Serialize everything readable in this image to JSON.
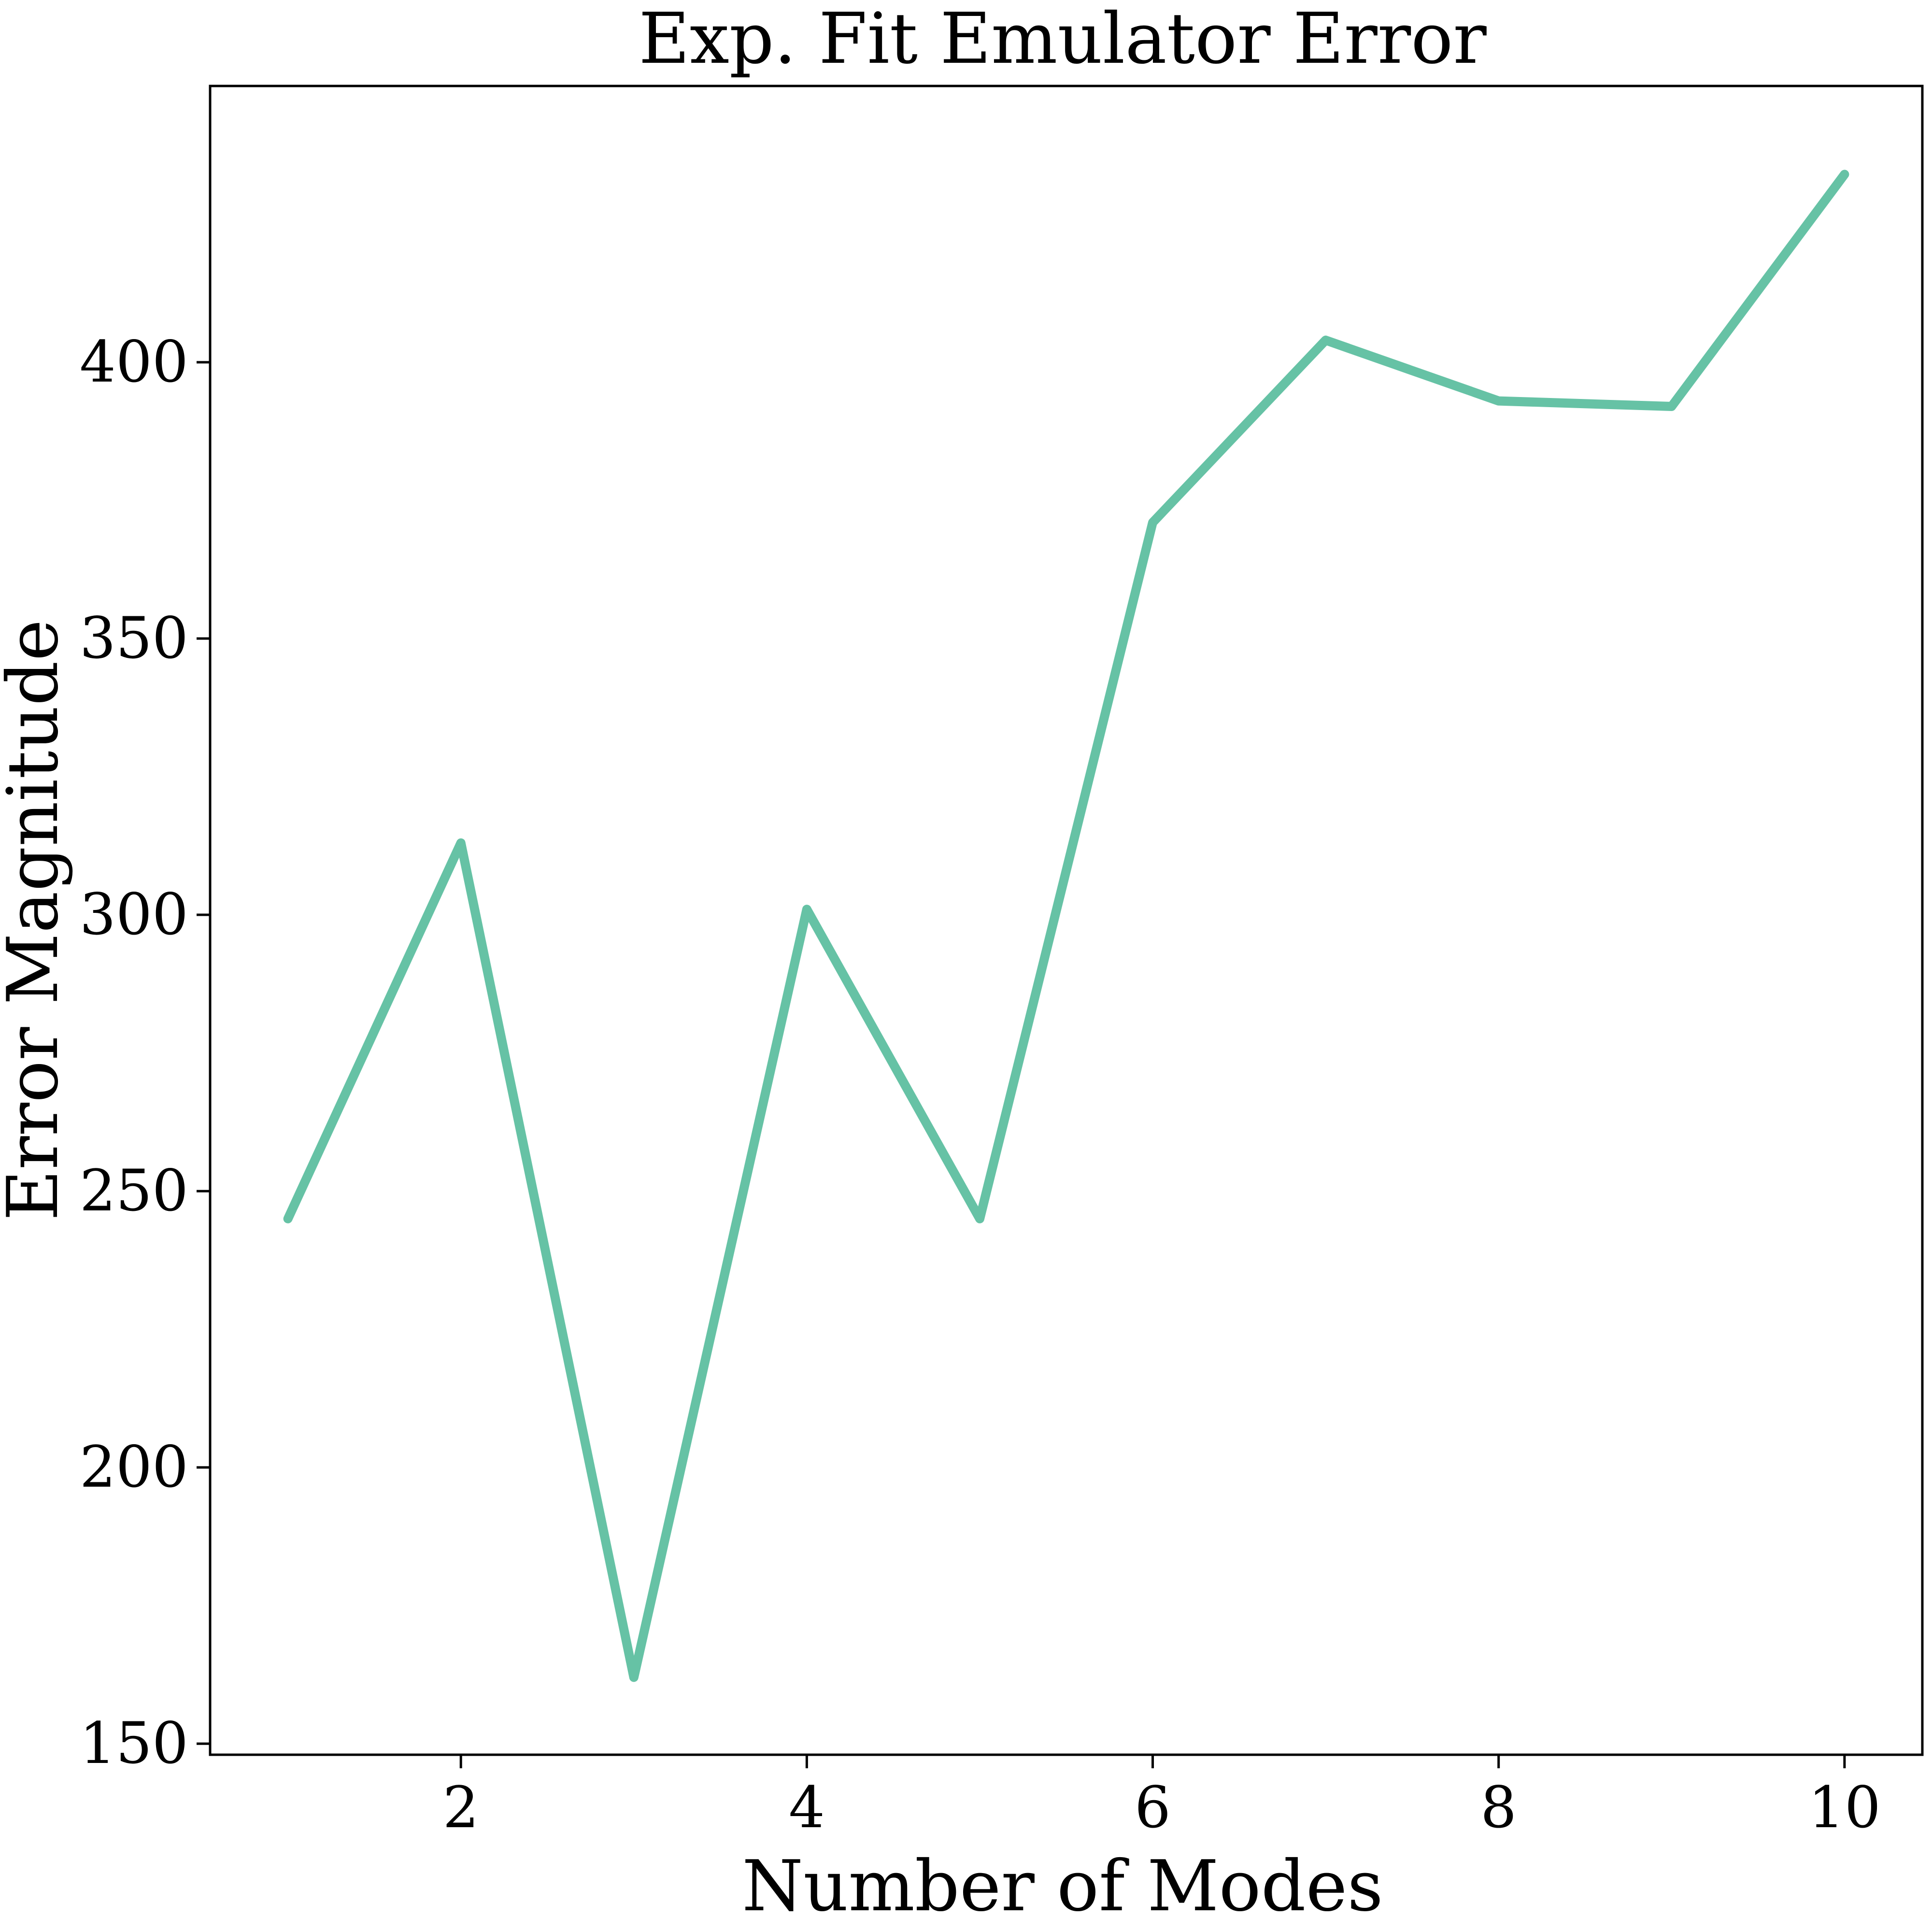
{
  "chart_data": {
    "type": "line",
    "title": "Exp. Fit Emulator Error",
    "xlabel": "Number of Modes",
    "ylabel": "Error Magnitude",
    "x": [
      1,
      2,
      3,
      4,
      5,
      6,
      7,
      8,
      9,
      10
    ],
    "series": [
      {
        "values": [
          245,
          313,
          162,
          301,
          245,
          371,
          404,
          393,
          392,
          434
        ],
        "color": "#66c2a5"
      }
    ],
    "xlim": [
      0.55,
      10.45
    ],
    "ylim": [
      148,
      450
    ],
    "xticks": [
      2,
      4,
      6,
      8,
      10
    ],
    "yticks": [
      150,
      200,
      250,
      300,
      350,
      400
    ],
    "grid": false,
    "legend": "none"
  }
}
